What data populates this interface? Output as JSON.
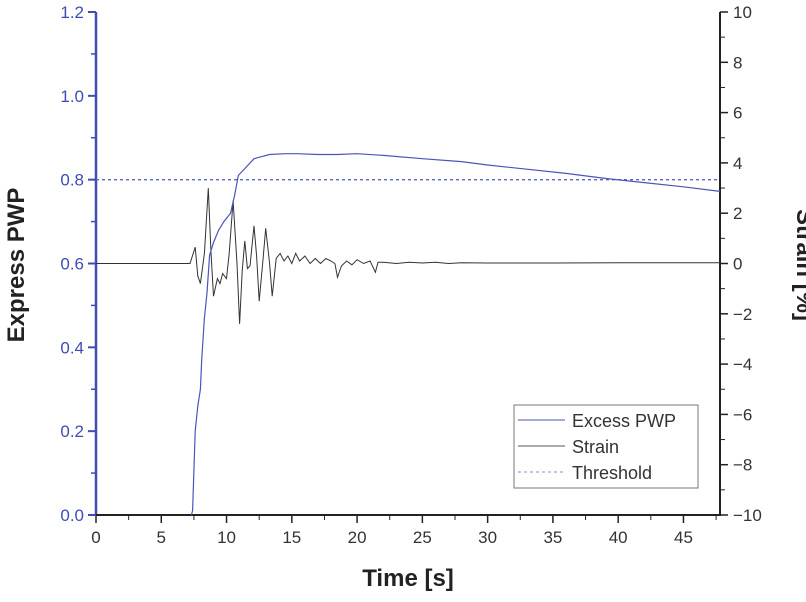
{
  "chart_data": {
    "type": "line",
    "xlabel": "Time [s]",
    "ylabel_left": "Express PWP",
    "ylabel_right": "Strain [%]",
    "xlim": [
      0,
      47.8
    ],
    "ylim_left": [
      0,
      1.2
    ],
    "ylim_right": [
      -10,
      10
    ],
    "x_ticks": [
      "0",
      "5",
      "10",
      "15",
      "20",
      "25",
      "30",
      "35",
      "40",
      "45"
    ],
    "y_left_ticks": [
      "0.0",
      "0.2",
      "0.4",
      "0.6",
      "0.8",
      "1.0",
      "1.2"
    ],
    "y_right_ticks": [
      "-10",
      "-8",
      "-6",
      "-4",
      "-2",
      "0",
      "2",
      "4",
      "6",
      "8",
      "10"
    ],
    "grid": false,
    "legend_position": "bottom-right",
    "colors": {
      "pwp": "#4a55b8",
      "strain": "#333333",
      "threshold": "#5a66c4",
      "left_axis": "#3f4db3"
    },
    "series": [
      {
        "name": "Excess PWP",
        "axis": "left",
        "x": [
          7.3,
          7.4,
          7.6,
          7.8,
          8.0,
          8.1,
          8.3,
          8.5,
          8.7,
          9.0,
          9.4,
          9.8,
          10.3,
          10.6,
          10.9,
          11.5,
          12.1,
          12.7,
          13.3,
          14.5,
          15.4,
          17,
          18.5,
          20,
          22,
          25,
          28,
          30,
          33,
          36,
          39,
          42,
          45,
          47.8
        ],
        "y": [
          0,
          0.01,
          0.2,
          0.26,
          0.3,
          0.37,
          0.47,
          0.53,
          0.62,
          0.65,
          0.68,
          0.7,
          0.72,
          0.76,
          0.81,
          0.83,
          0.85,
          0.855,
          0.86,
          0.862,
          0.862,
          0.86,
          0.86,
          0.862,
          0.858,
          0.85,
          0.843,
          0.835,
          0.825,
          0.815,
          0.803,
          0.793,
          0.783,
          0.772
        ]
      },
      {
        "name": "Strain",
        "axis": "right",
        "x": [
          0,
          7.2,
          7.6,
          7.8,
          8.0,
          8.3,
          8.6,
          8.8,
          9.0,
          9.3,
          9.5,
          9.7,
          10.0,
          10.2,
          10.5,
          10.8,
          11.0,
          11.2,
          11.4,
          11.6,
          11.8,
          12.1,
          12.3,
          12.5,
          12.8,
          13.0,
          13.3,
          13.5,
          13.8,
          14.1,
          14.4,
          14.7,
          15.0,
          15.3,
          15.6,
          16.0,
          16.4,
          16.8,
          17.2,
          17.6,
          18.0,
          18.3,
          18.5,
          18.8,
          19.2,
          19.6,
          20.0,
          20.5,
          21.0,
          21.4,
          21.6,
          22,
          23,
          24,
          25,
          26,
          27,
          28,
          30,
          35,
          40,
          47.8
        ],
        "y": [
          0,
          0,
          0.65,
          -0.5,
          -0.8,
          0.4,
          3.0,
          0.5,
          -1.3,
          -0.6,
          -0.8,
          -0.4,
          -0.6,
          0.4,
          2.5,
          0.0,
          -2.4,
          -0.3,
          0.9,
          -0.2,
          -0.1,
          1.5,
          0.3,
          -1.5,
          0.2,
          1.4,
          0.0,
          -1.3,
          0.2,
          0.4,
          0.1,
          0.3,
          0.0,
          0.4,
          0.1,
          0.3,
          0.0,
          0.2,
          0.0,
          0.2,
          0.1,
          0.0,
          -0.55,
          -0.1,
          0.1,
          -0.05,
          0.15,
          0.0,
          0.1,
          -0.35,
          0.05,
          0.05,
          0.0,
          0.05,
          0.02,
          0.05,
          0.0,
          0.03,
          0.02,
          0.02,
          0.03,
          0.03
        ]
      },
      {
        "name": "Threshold",
        "axis": "left",
        "x": [
          0,
          47.8
        ],
        "y": [
          0.8,
          0.8
        ]
      }
    ]
  }
}
